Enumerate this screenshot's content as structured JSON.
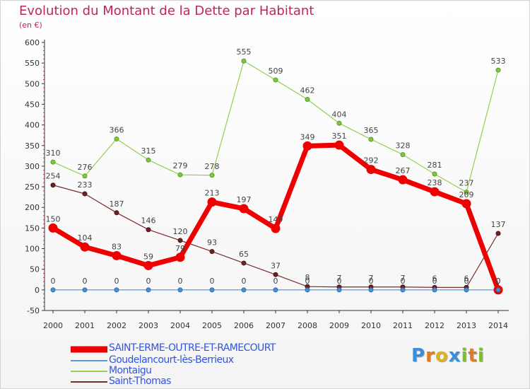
{
  "title": "Evolution du Montant de la Dette par Habitant",
  "subtitle": "(en €)",
  "logo_text": "Proxiti",
  "chart_data": {
    "type": "line",
    "x": [
      "2000",
      "2001",
      "2002",
      "2003",
      "2004",
      "2005",
      "2006",
      "2007",
      "2008",
      "2009",
      "2010",
      "2011",
      "2012",
      "2013",
      "2014"
    ],
    "ylim": [
      -50,
      600
    ],
    "yticks": [
      -50,
      0,
      50,
      100,
      150,
      200,
      250,
      300,
      350,
      400,
      450,
      500,
      550,
      600
    ],
    "grid": false,
    "legend_position": "bottom-left",
    "series": [
      {
        "name": "SAINT-ERME-OUTRE-ET-RAMECOURT",
        "color": "#ee0000",
        "values": [
          150,
          104,
          83,
          59,
          79,
          213,
          197,
          149,
          349,
          351,
          292,
          267,
          238,
          209,
          0
        ]
      },
      {
        "name": "Goudelancourt-lès-Berrieux",
        "color": "#5b9bd5",
        "values": [
          0,
          0,
          0,
          0,
          0,
          0,
          0,
          0,
          0,
          0,
          0,
          0,
          0,
          0,
          0
        ]
      },
      {
        "name": "Montaigu",
        "color": "#92d050",
        "values": [
          310,
          276,
          366,
          315,
          279,
          278,
          555,
          509,
          462,
          404,
          365,
          328,
          281,
          237,
          533
        ]
      },
      {
        "name": "Saint-Thomas",
        "color": "#7b2c2c",
        "values": [
          254,
          233,
          187,
          146,
          120,
          93,
          65,
          37,
          8,
          7,
          7,
          7,
          6,
          6,
          137
        ]
      }
    ],
    "data_labels": [
      [
        "150",
        "104",
        "83",
        "59",
        "79",
        "213",
        "197",
        "149",
        "349",
        "351",
        "292",
        "267",
        "238",
        "209",
        "0"
      ],
      [
        "0",
        "0",
        "0",
        "0",
        "0",
        "0",
        "0",
        "0",
        "0",
        "0",
        "0",
        "0",
        "0",
        "0",
        "0"
      ],
      [
        "310",
        "276",
        "366",
        "315",
        "279",
        "278",
        "555",
        "509",
        "462",
        "404",
        "365",
        "328",
        "281",
        "237",
        "533"
      ],
      [
        "254",
        "233",
        "187",
        "146",
        "120",
        "93",
        "65",
        "37",
        "8",
        "7",
        "7",
        "7",
        "6",
        "6",
        "137"
      ]
    ]
  }
}
